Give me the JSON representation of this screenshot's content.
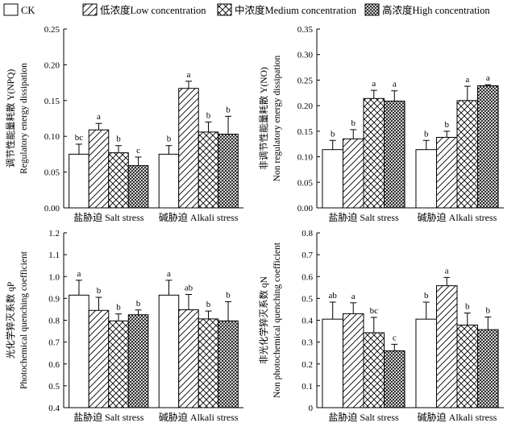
{
  "legend": [
    {
      "label": "CK",
      "pattern": "none"
    },
    {
      "label": "低浓度Low concentration",
      "pattern": "diag"
    },
    {
      "label": "中浓度Medium concentration",
      "pattern": "cross"
    },
    {
      "label": "高浓度High concentration",
      "pattern": "dense"
    }
  ],
  "chart_data": [
    {
      "type": "bar",
      "ylabel_cn": "调节性能量耗散 Y(NPQ)",
      "ylabel_en": "Regulatory energy dissipation",
      "ylim": [
        0,
        0.25
      ],
      "yticks": [
        "0.00",
        "0.05",
        "0.10",
        "0.15",
        "0.20",
        "0.25"
      ],
      "categories": [
        "盐胁迫 Salt stress",
        "碱胁迫 Alkali stress"
      ],
      "series_values": [
        [
          0.075,
          0.075
        ],
        [
          0.109,
          0.167
        ],
        [
          0.077,
          0.106
        ],
        [
          0.059,
          0.103
        ]
      ],
      "errors": [
        [
          0.014,
          0.012
        ],
        [
          0.009,
          0.01
        ],
        [
          0.01,
          0.014
        ],
        [
          0.012,
          0.025
        ]
      ],
      "letters": [
        [
          "bc",
          "b"
        ],
        [
          "a",
          "a"
        ],
        [
          "b",
          "b"
        ],
        [
          "c",
          "b"
        ]
      ]
    },
    {
      "type": "bar",
      "ylabel_cn": "非调节性能量耗散 Y(NO)",
      "ylabel_en": "Non regulatory energy dissipation",
      "ylim": [
        0,
        0.35
      ],
      "yticks": [
        "0.00",
        "0.05",
        "0.10",
        "0.15",
        "0.20",
        "0.25",
        "0.30",
        "0.35"
      ],
      "categories": [
        "盐胁迫 Salt stress",
        "碱胁迫 Alkali stress"
      ],
      "series_values": [
        [
          0.114,
          0.114
        ],
        [
          0.135,
          0.138
        ],
        [
          0.214,
          0.21
        ],
        [
          0.209,
          0.239
        ]
      ],
      "errors": [
        [
          0.018,
          0.018
        ],
        [
          0.018,
          0.012
        ],
        [
          0.016,
          0.028
        ],
        [
          0.02,
          0.002
        ]
      ],
      "letters": [
        [
          "b",
          "b"
        ],
        [
          "b",
          "b"
        ],
        [
          "a",
          "a"
        ],
        [
          "a",
          "a"
        ]
      ]
    },
    {
      "type": "bar",
      "ylabel_cn": "光化学猝灭系数 qP",
      "ylabel_en": "Photochemical quenching coefficient",
      "ylim": [
        0.4,
        1.2
      ],
      "yticks": [
        "0.4",
        "0.5",
        "0.6",
        "0.7",
        "0.8",
        "0.9",
        "1.0",
        "1.1",
        "1.2"
      ],
      "categories": [
        "盐胁迫 Salt stress",
        "碱胁迫 Alkali stress"
      ],
      "series_values": [
        [
          0.915,
          0.915
        ],
        [
          0.845,
          0.848
        ],
        [
          0.797,
          0.806
        ],
        [
          0.825,
          0.797
        ]
      ],
      "errors": [
        [
          0.068,
          0.068
        ],
        [
          0.06,
          0.07
        ],
        [
          0.032,
          0.036
        ],
        [
          0.022,
          0.088
        ]
      ],
      "letters": [
        [
          "a",
          "a"
        ],
        [
          "b",
          "ab"
        ],
        [
          "b",
          "b"
        ],
        [
          "b",
          "b"
        ]
      ]
    },
    {
      "type": "bar",
      "ylabel_cn": "非光化学猝灭系数 qN",
      "ylabel_en": "Non photochemical quenching coefficient",
      "ylim": [
        0,
        0.8
      ],
      "yticks": [
        "0",
        "0.1",
        "0.2",
        "0.3",
        "0.4",
        "0.5",
        "0.6",
        "0.7",
        "0.8"
      ],
      "categories": [
        "盐胁迫 Salt stress",
        "碱胁迫 Alkali stress"
      ],
      "series_values": [
        [
          0.405,
          0.405
        ],
        [
          0.43,
          0.558
        ],
        [
          0.343,
          0.378
        ],
        [
          0.26,
          0.357
        ]
      ],
      "errors": [
        [
          0.078,
          0.078
        ],
        [
          0.05,
          0.038
        ],
        [
          0.07,
          0.055
        ],
        [
          0.03,
          0.058
        ]
      ],
      "letters": [
        [
          "ab",
          "b"
        ],
        [
          "a",
          "a"
        ],
        [
          "bc",
          "b"
        ],
        [
          "c",
          "b"
        ]
      ]
    }
  ]
}
